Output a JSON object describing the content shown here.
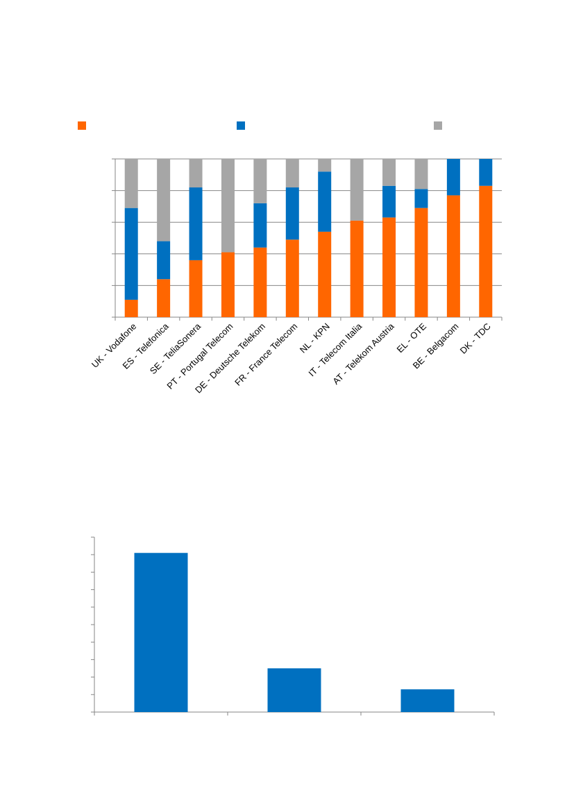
{
  "colors": {
    "orange": "#FF6600",
    "blue": "#0070C0",
    "grey": "#A6A6A6",
    "grid": "#868686"
  },
  "chart_data": [
    {
      "type": "bar",
      "stacked": true,
      "percent_stacked": true,
      "categories": [
        "UK - Vodafone",
        "ES - Telefonica",
        "SE - TeliaSonera",
        "PT - Portugal Telecom",
        "DE - Deutsche Telekom",
        "FR - France Telecom",
        "NL - KPN",
        "IT - Telecom Italia",
        "AT - Telekom Austria",
        "EL - OTE",
        "BE - Belgacom",
        "DK - TDC"
      ],
      "series": [
        {
          "color": "#FF6600",
          "values": [
            11,
            24,
            36,
            41,
            44,
            49,
            54,
            61,
            63,
            69,
            77,
            83
          ]
        },
        {
          "color": "#0070C0",
          "values": [
            58,
            24,
            46,
            0,
            28,
            33,
            38,
            0,
            20,
            12,
            23,
            17
          ]
        },
        {
          "color": "#A6A6A6",
          "values": [
            31,
            52,
            18,
            59,
            28,
            18,
            8,
            39,
            17,
            19,
            0,
            0
          ]
        }
      ],
      "ylim": [
        0,
        100
      ],
      "grid": true,
      "legend": "top"
    },
    {
      "type": "bar",
      "categories": [
        "",
        "",
        ""
      ],
      "values": [
        9.1,
        2.5,
        1.3
      ],
      "ylim": [
        0,
        10
      ],
      "color": "#0070C0",
      "grid": false
    }
  ]
}
